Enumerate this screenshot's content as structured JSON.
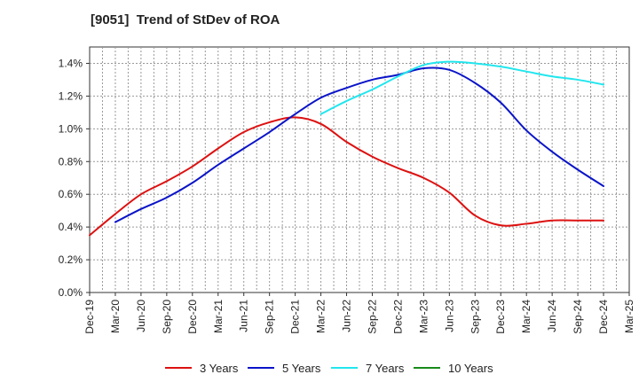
{
  "chart_data": {
    "type": "line",
    "title": "[9051]  Trend of StDev of ROA",
    "xlabel": "",
    "ylabel": "",
    "x": [
      "Dec-19",
      "Mar-20",
      "Jun-20",
      "Sep-20",
      "Dec-20",
      "Mar-21",
      "Jun-21",
      "Sep-21",
      "Dec-21",
      "Mar-22",
      "Jun-22",
      "Sep-22",
      "Dec-22",
      "Mar-23",
      "Jun-23",
      "Sep-23",
      "Dec-23",
      "Mar-24",
      "Jun-24",
      "Sep-24",
      "Dec-24",
      "Mar-25"
    ],
    "yticks": [
      "0.0%",
      "0.2%",
      "0.4%",
      "0.6%",
      "0.8%",
      "1.0%",
      "1.2%",
      "1.4%"
    ],
    "ylim": [
      0,
      1.5
    ],
    "grid": true,
    "legend_position": "bottom",
    "series": [
      {
        "name": "3 Years",
        "color": "#dd1111",
        "values": [
          0.35,
          0.48,
          0.6,
          0.68,
          0.77,
          0.88,
          0.98,
          1.04,
          1.07,
          1.03,
          0.92,
          0.83,
          0.76,
          0.7,
          0.61,
          0.47,
          0.41,
          0.42,
          0.44,
          0.44,
          0.44,
          null
        ]
      },
      {
        "name": "5 Years",
        "color": "#0a14c8",
        "values": [
          null,
          0.43,
          0.51,
          0.58,
          0.67,
          0.78,
          0.88,
          0.98,
          1.09,
          1.19,
          1.25,
          1.3,
          1.33,
          1.37,
          1.36,
          1.28,
          1.16,
          0.99,
          0.86,
          0.75,
          0.65,
          null
        ]
      },
      {
        "name": "7 Years",
        "color": "#22e6ee",
        "values": [
          null,
          null,
          null,
          null,
          null,
          null,
          null,
          null,
          null,
          1.09,
          1.17,
          1.24,
          1.32,
          1.39,
          1.41,
          1.4,
          1.38,
          1.35,
          1.32,
          1.3,
          1.27,
          null
        ]
      },
      {
        "name": "10 Years",
        "color": "#1a8a1a",
        "values": [
          null,
          null,
          null,
          null,
          null,
          null,
          null,
          null,
          null,
          null,
          null,
          null,
          null,
          null,
          null,
          null,
          null,
          null,
          null,
          null,
          null,
          null
        ]
      }
    ]
  }
}
